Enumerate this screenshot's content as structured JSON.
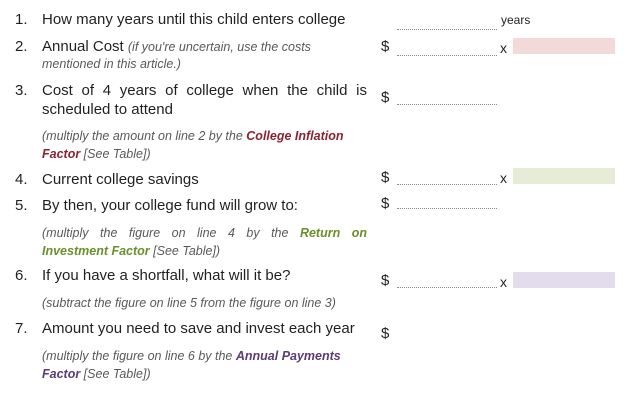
{
  "rows": [
    {
      "num": "1.",
      "label": "How many years until this child enters college",
      "unit": "years"
    },
    {
      "num": "2.",
      "label": "Annual Cost",
      "hint_1": "(if you're uncertain, use the costs",
      "hint_2": "mentioned in this article.)"
    },
    {
      "num": "3.",
      "label_1": "Cost of 4 years of college when the child is",
      "label_2": "scheduled to attend",
      "note_pre": "(multiply the amount on line 2 by the ",
      "note_factor_1": "College Inflation",
      "note_factor_2": "Factor",
      "note_post": " [See Table])"
    },
    {
      "num": "4.",
      "label": "Current college savings"
    },
    {
      "num": "5.",
      "label": "By then, your college fund will grow to:",
      "note_pre": "(multiply the figure on line 4 by the ",
      "note_factor_1": "Return on",
      "note_factor_2": "Investment Factor",
      "note_post": " [See Table])"
    },
    {
      "num": "6.",
      "label": "If you have a shortfall, what will it be?",
      "note": "(subtract the figure on line 5 from the figure on line 3)"
    },
    {
      "num": "7.",
      "label": "Amount you need to save and invest each year",
      "note_pre": "(multiply the figure on line 6 by the ",
      "note_factor_1": "Annual Payments",
      "note_factor_2": "Factor",
      "note_post": " [See Table])"
    }
  ],
  "symbols": {
    "dollar": "$",
    "times": "x"
  },
  "colors": {
    "pink_box": "#f3d9da",
    "green_box": "#e6ecd6",
    "lavender_box": "#e2dcec",
    "inflation_text": "#8b2331",
    "return_text": "#6b8f2a",
    "payments_text": "#5b3b7a"
  }
}
